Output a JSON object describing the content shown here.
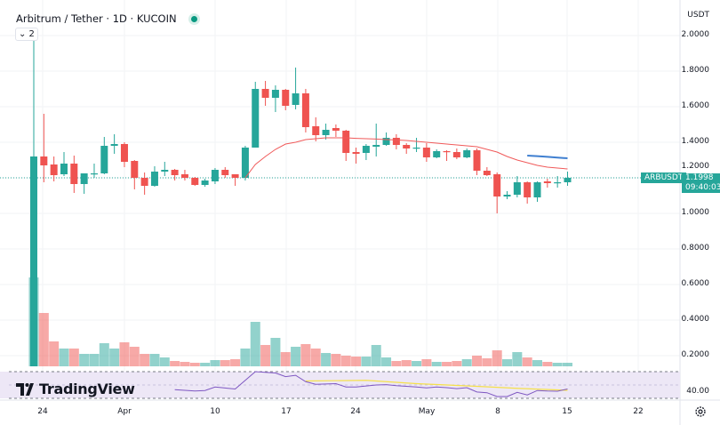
{
  "header": {
    "symbol": "Arbitrum / Tether · 1D · KUCOIN",
    "status": "market-open-dot",
    "collapse_label": "⌄ 2"
  },
  "colors": {
    "up": "#26a69a",
    "down": "#ef5350",
    "ema": "#f05a5a",
    "blue_line": "#3f7fd0",
    "rsi": "#7e57c2",
    "rsi_ma": "#f5e04a",
    "rsi_bg": "#ede7f6"
  },
  "price_axis": {
    "currency": "USDT",
    "ticks": [
      "2.0000",
      "1.8000",
      "1.6000",
      "1.4000",
      "1.2000",
      "1.0000",
      "0.8000",
      "0.6000",
      "0.4000",
      "0.2000"
    ]
  },
  "rsi_axis": {
    "label": "40.00"
  },
  "time_axis": {
    "ticks": [
      "24",
      "Apr",
      "10",
      "17",
      "24",
      "May",
      "8",
      "15",
      "22"
    ]
  },
  "last_price": {
    "symbol": "ARBUSDT",
    "price": "1.1998",
    "countdown": "09:40:03",
    "value": 1.1998
  },
  "branding": {
    "logo": "TradingView"
  },
  "chart_data": {
    "type": "candlestick",
    "ohlc": [
      [
        0.1,
        2.02,
        0.1,
        1.32
      ],
      [
        1.32,
        1.56,
        1.175,
        1.27
      ],
      [
        1.275,
        1.32,
        1.18,
        1.215
      ],
      [
        1.22,
        1.345,
        1.21,
        1.28
      ],
      [
        1.28,
        1.325,
        1.115,
        1.165
      ],
      [
        1.165,
        1.225,
        1.11,
        1.225
      ],
      [
        1.22,
        1.28,
        1.2,
        1.225
      ],
      [
        1.225,
        1.43,
        1.22,
        1.38
      ],
      [
        1.38,
        1.445,
        1.335,
        1.39
      ],
      [
        1.39,
        1.4,
        1.26,
        1.29
      ],
      [
        1.295,
        1.3,
        1.135,
        1.2
      ],
      [
        1.2,
        1.23,
        1.105,
        1.155
      ],
      [
        1.155,
        1.265,
        1.15,
        1.235
      ],
      [
        1.235,
        1.29,
        1.21,
        1.245
      ],
      [
        1.245,
        1.25,
        1.185,
        1.215
      ],
      [
        1.22,
        1.245,
        1.185,
        1.2
      ],
      [
        1.2,
        1.205,
        1.155,
        1.16
      ],
      [
        1.16,
        1.195,
        1.15,
        1.185
      ],
      [
        1.18,
        1.255,
        1.165,
        1.245
      ],
      [
        1.245,
        1.26,
        1.2,
        1.215
      ],
      [
        1.22,
        1.22,
        1.155,
        1.2
      ],
      [
        1.2,
        1.38,
        1.185,
        1.37
      ],
      [
        1.37,
        1.74,
        1.37,
        1.7
      ],
      [
        1.7,
        1.745,
        1.605,
        1.65
      ],
      [
        1.65,
        1.72,
        1.57,
        1.695
      ],
      [
        1.695,
        1.7,
        1.58,
        1.605
      ],
      [
        1.61,
        1.82,
        1.585,
        1.675
      ],
      [
        1.675,
        1.7,
        1.455,
        1.485
      ],
      [
        1.49,
        1.54,
        1.405,
        1.44
      ],
      [
        1.44,
        1.505,
        1.415,
        1.47
      ],
      [
        1.48,
        1.5,
        1.43,
        1.465
      ],
      [
        1.465,
        1.47,
        1.295,
        1.34
      ],
      [
        1.345,
        1.37,
        1.28,
        1.335
      ],
      [
        1.34,
        1.39,
        1.3,
        1.38
      ],
      [
        1.375,
        1.505,
        1.32,
        1.385
      ],
      [
        1.385,
        1.455,
        1.38,
        1.425
      ],
      [
        1.425,
        1.445,
        1.36,
        1.385
      ],
      [
        1.385,
        1.395,
        1.335,
        1.365
      ],
      [
        1.365,
        1.425,
        1.345,
        1.37
      ],
      [
        1.37,
        1.395,
        1.29,
        1.315
      ],
      [
        1.315,
        1.36,
        1.31,
        1.35
      ],
      [
        1.35,
        1.355,
        1.295,
        1.345
      ],
      [
        1.345,
        1.365,
        1.305,
        1.315
      ],
      [
        1.315,
        1.365,
        1.31,
        1.355
      ],
      [
        1.355,
        1.365,
        1.215,
        1.24
      ],
      [
        1.24,
        1.26,
        1.21,
        1.215
      ],
      [
        1.22,
        1.23,
        1.0,
        1.095
      ],
      [
        1.095,
        1.125,
        1.08,
        1.105
      ],
      [
        1.105,
        1.21,
        1.09,
        1.175
      ],
      [
        1.175,
        1.18,
        1.055,
        1.09
      ],
      [
        1.09,
        1.18,
        1.065,
        1.175
      ],
      [
        1.18,
        1.195,
        1.145,
        1.17
      ],
      [
        1.17,
        1.21,
        1.145,
        1.175
      ],
      [
        1.175,
        1.235,
        1.155,
        1.2
      ]
    ],
    "volume_relative": [
      100,
      60,
      28,
      20,
      20,
      14,
      14,
      26,
      20,
      27,
      22,
      14,
      14,
      10,
      6,
      5,
      4,
      4,
      7,
      7,
      8,
      20,
      50,
      24,
      32,
      16,
      22,
      25,
      20,
      15,
      14,
      12,
      11,
      11,
      24,
      10,
      6,
      7,
      6,
      8,
      5,
      5,
      6,
      8,
      12,
      9,
      18,
      8,
      16,
      10,
      7,
      5,
      4,
      4
    ],
    "ema_start_index": 21,
    "ema": [
      1.2,
      1.275,
      1.32,
      1.36,
      1.39,
      1.4,
      1.415,
      1.42,
      1.425,
      1.425,
      1.425,
      1.422,
      1.42,
      1.418,
      1.415,
      1.413,
      1.41,
      1.405,
      1.4,
      1.395,
      1.39,
      1.385,
      1.38,
      1.375,
      1.36,
      1.345,
      1.32,
      1.3,
      1.285,
      1.27,
      1.26,
      1.255,
      1.25
    ],
    "blue_line_start_index": 49,
    "blue_line": [
      1.325,
      1.322,
      1.318,
      1.314,
      1.31
    ],
    "rsi_start_index": 14,
    "rsi": [
      43,
      42,
      41,
      41.7,
      47,
      45.5,
      44,
      57,
      70,
      69,
      68,
      62.5,
      64.5,
      55,
      51,
      51.5,
      52,
      47,
      47,
      48.5,
      50,
      50.5,
      49,
      48,
      47,
      45.6,
      47,
      46,
      44.5,
      46,
      39.5,
      38.4,
      32.7,
      32.7,
      39,
      35,
      41.7,
      41,
      40.7,
      44
    ],
    "rsi_ma_points": [
      [
        27,
        56
      ],
      [
        33,
        57
      ],
      [
        38,
        52
      ],
      [
        44,
        48
      ],
      [
        48,
        45
      ],
      [
        53,
        42
      ]
    ],
    "price_range": [
      0.0,
      2.1
    ],
    "rsi_range": [
      30,
      70
    ],
    "grid": true
  }
}
